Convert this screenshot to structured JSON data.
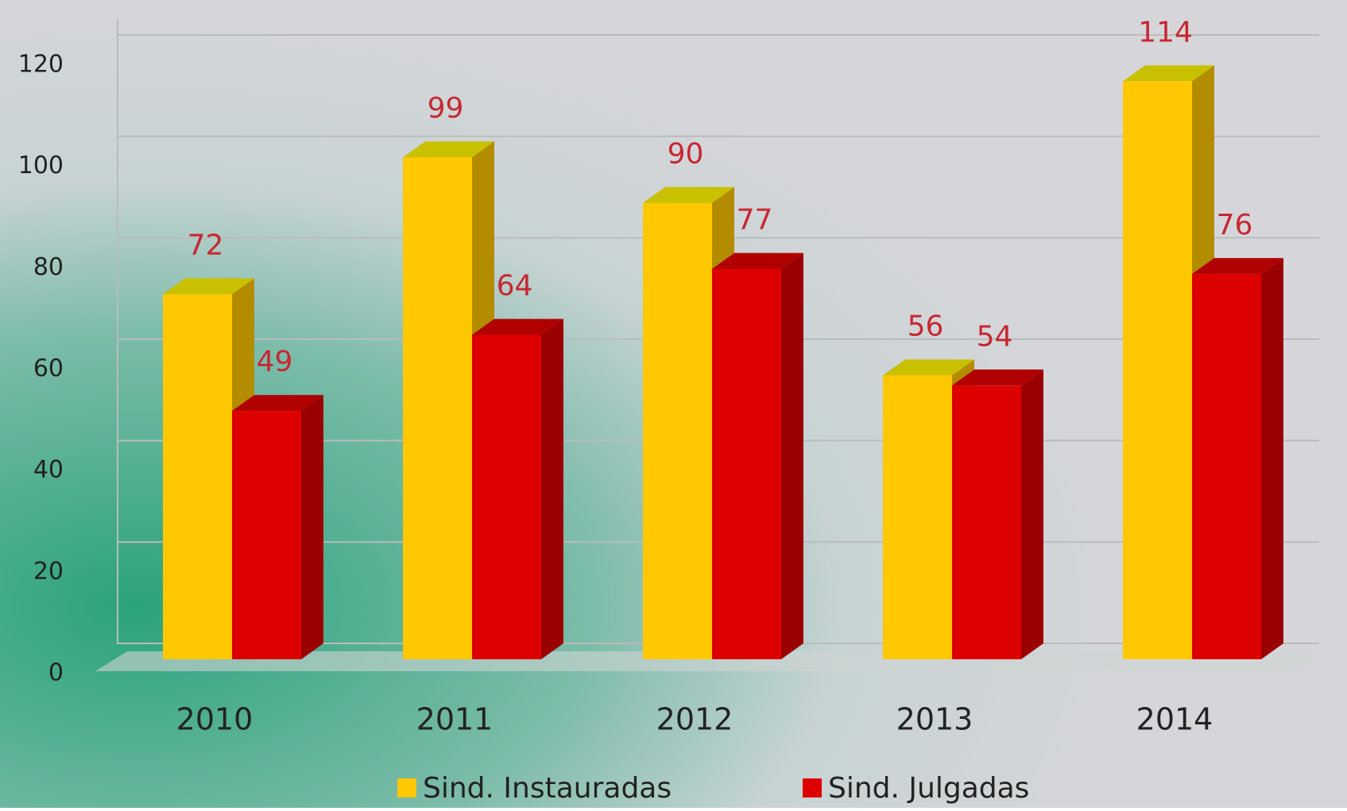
{
  "chart_data": {
    "type": "bar3d",
    "categories": [
      "2010",
      "2011",
      "2012",
      "2013",
      "2014"
    ],
    "series": [
      {
        "name": "Sind. Instauradas",
        "color": "#ffc800",
        "values": [
          72,
          99,
          90,
          56,
          114
        ]
      },
      {
        "name": "Sind. Julgadas",
        "color": "#dd0000",
        "values": [
          49,
          64,
          77,
          54,
          76
        ]
      }
    ],
    "ylim": [
      0,
      120
    ],
    "yticks": [
      0,
      20,
      40,
      60,
      80,
      100,
      120
    ],
    "grid": true,
    "legend": "bottom"
  }
}
